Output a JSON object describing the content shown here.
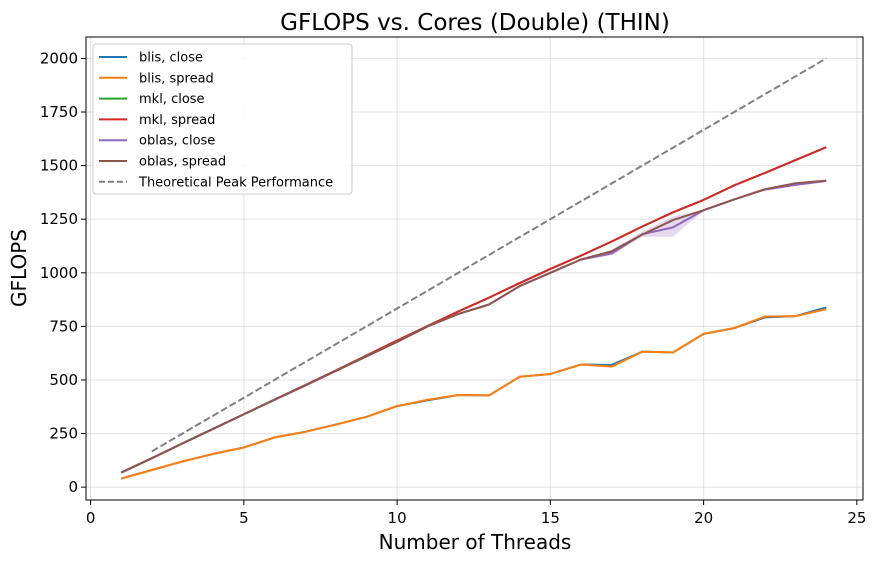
{
  "chart_data": {
    "type": "line",
    "title": "GFLOPS vs. Cores (Double) (THIN)",
    "xlabel": "Number of Threads",
    "ylabel": "GFLOPS",
    "xlim": [
      -0.15,
      25.2
    ],
    "ylim": [
      -60,
      2100
    ],
    "xticks": [
      0,
      5,
      10,
      15,
      20,
      25
    ],
    "yticks": [
      0,
      250,
      500,
      750,
      1000,
      1250,
      1500,
      1750,
      2000
    ],
    "grid": true,
    "legend_position": "top-left",
    "series": [
      {
        "name": "blis, close",
        "color": "#1f77b4",
        "dashed": false,
        "x": [
          1,
          2,
          3,
          4,
          5,
          6,
          7,
          8,
          9,
          10,
          11,
          12,
          13,
          14,
          15,
          16,
          17,
          18,
          19,
          20,
          21,
          22,
          23,
          24
        ],
        "y": [
          40,
          80,
          120,
          155,
          185,
          232,
          258,
          292,
          328,
          378,
          405,
          430,
          428,
          515,
          528,
          572,
          570,
          632,
          628,
          715,
          742,
          792,
          798,
          838
        ]
      },
      {
        "name": "blis, spread",
        "color": "#ff7f0e",
        "dashed": false,
        "x": [
          1,
          2,
          3,
          4,
          5,
          6,
          7,
          8,
          9,
          10,
          11,
          12,
          13,
          14,
          15,
          16,
          17,
          18,
          19,
          20,
          21,
          22,
          23,
          24
        ],
        "y": [
          40,
          80,
          120,
          155,
          185,
          232,
          258,
          292,
          328,
          378,
          408,
          430,
          428,
          515,
          528,
          572,
          562,
          632,
          628,
          715,
          742,
          796,
          798,
          830
        ]
      },
      {
        "name": "mkl, close",
        "color": "#2ca02c",
        "dashed": false,
        "x": [
          1,
          2,
          3,
          4,
          5,
          6,
          7,
          8,
          9,
          10,
          11,
          12,
          13,
          14,
          15,
          16,
          17,
          18,
          19,
          20,
          21,
          22,
          23,
          24
        ],
        "y": [
          68,
          135,
          204,
          272,
          340,
          408,
          476,
          544,
          614,
          684,
          752,
          820,
          884,
          952,
          1018,
          1080,
          1146,
          1216,
          1282,
          1340,
          1408,
          1466,
          1526,
          1586
        ]
      },
      {
        "name": "mkl, spread",
        "color": "#d62728",
        "dashed": false,
        "x": [
          1,
          2,
          3,
          4,
          5,
          6,
          7,
          8,
          9,
          10,
          11,
          12,
          13,
          14,
          15,
          16,
          17,
          18,
          19,
          20,
          21,
          22,
          23,
          24
        ],
        "y": [
          68,
          135,
          204,
          272,
          340,
          408,
          476,
          544,
          614,
          684,
          752,
          820,
          884,
          952,
          1018,
          1080,
          1146,
          1216,
          1282,
          1340,
          1408,
          1466,
          1526,
          1586
        ]
      },
      {
        "name": "oblas, close",
        "color": "#9467bd",
        "dashed": false,
        "x": [
          1,
          2,
          3,
          4,
          5,
          6,
          7,
          8,
          9,
          10,
          11,
          12,
          13,
          14,
          15,
          16,
          17,
          18,
          19,
          20,
          21,
          22,
          23,
          24
        ],
        "y": [
          68,
          135,
          204,
          272,
          340,
          408,
          474,
          542,
          610,
          678,
          750,
          808,
          852,
          938,
          1000,
          1062,
          1090,
          1180,
          1212,
          1292,
          1342,
          1388,
          1410,
          1428
        ]
      },
      {
        "name": "oblas, spread",
        "color": "#8c564b",
        "dashed": false,
        "x": [
          1,
          2,
          3,
          4,
          5,
          6,
          7,
          8,
          9,
          10,
          11,
          12,
          13,
          14,
          15,
          16,
          17,
          18,
          19,
          20,
          21,
          22,
          23,
          24
        ],
        "y": [
          68,
          135,
          204,
          272,
          340,
          408,
          474,
          542,
          610,
          678,
          750,
          808,
          852,
          938,
          1000,
          1062,
          1100,
          1178,
          1246,
          1292,
          1342,
          1390,
          1418,
          1430
        ]
      },
      {
        "name": "Theoretical Peak Performance",
        "color": "#808080",
        "dashed": true,
        "x": [
          2,
          24
        ],
        "y": [
          167,
          2000
        ]
      }
    ],
    "bands": [
      {
        "color": "#9467bd",
        "x": [
          16,
          17,
          18,
          19,
          20
        ],
        "low": [
          1058,
          1082,
          1168,
          1168,
          1290
        ],
        "high": [
          1066,
          1108,
          1192,
          1262,
          1294
        ]
      }
    ]
  }
}
